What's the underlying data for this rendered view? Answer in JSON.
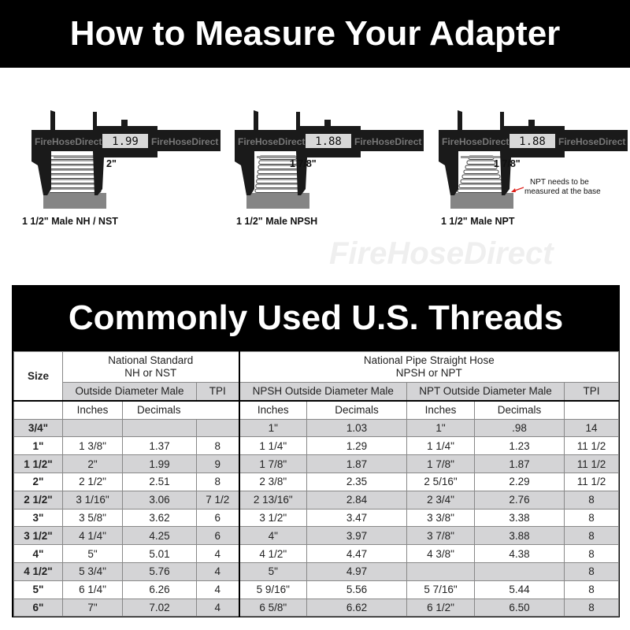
{
  "header": {
    "title": "How to Measure Your Adapter"
  },
  "calipers": [
    {
      "readout": "1.99",
      "measure": "2\"",
      "label": "1 1/2\" Male NH / NST",
      "watermark": "FireHoseDirect"
    },
    {
      "readout": "1.88",
      "measure": "1 7/8\"",
      "label": "1 1/2\" Male NPSH",
      "watermark": "FireHoseDirect"
    },
    {
      "readout": "1.88",
      "measure": "1 7/8\"",
      "label": "1 1/2\" Male NPT",
      "watermark": "FireHoseDirect",
      "note_line1": "NPT needs to be",
      "note_line2": "measured at the base"
    }
  ],
  "watermark": "FireHoseDirect",
  "colors": {
    "arrow": "#e0201a",
    "row_shade": "#d4d4d6"
  },
  "table": {
    "title": "Commonly Used U.S. Threads",
    "size_header": "Size",
    "nh_group_line1": "National Standard",
    "nh_group_line2": "NH or NST",
    "npsh_group_line1": "National Pipe Straight Hose",
    "npsh_group_line2": "NPSH or NPT",
    "nh_od": "Outside Diameter Male",
    "nh_tpi": "TPI",
    "npsh_od": "NPSH Outside Diameter Male",
    "npt_od": "NPT Outside Diameter Male",
    "npt_tpi": "TPI",
    "sub": [
      "Inches",
      "Decimals",
      "Inches",
      "Decimals",
      "Inches",
      "Decimals"
    ],
    "rows": [
      [
        "3/4\"",
        "",
        "",
        "",
        "1\"",
        "1.03",
        "1\"",
        ".98",
        "14"
      ],
      [
        "1\"",
        "1 3/8\"",
        "1.37",
        "8",
        "1 1/4\"",
        "1.29",
        "1 1/4\"",
        "1.23",
        "11 1/2"
      ],
      [
        "1 1/2\"",
        "2\"",
        "1.99",
        "9",
        "1 7/8\"",
        "1.87",
        "1 7/8\"",
        "1.87",
        "11 1/2"
      ],
      [
        "2\"",
        "2 1/2\"",
        "2.51",
        "8",
        "2 3/8\"",
        "2.35",
        "2 5/16\"",
        "2.29",
        "11 1/2"
      ],
      [
        "2 1/2\"",
        "3 1/16\"",
        "3.06",
        "7 1/2",
        "2 13/16\"",
        "2.84",
        "2 3/4\"",
        "2.76",
        "8"
      ],
      [
        "3\"",
        "3 5/8\"",
        "3.62",
        "6",
        "3 1/2\"",
        "3.47",
        "3 3/8\"",
        "3.38",
        "8"
      ],
      [
        "3 1/2\"",
        "4 1/4\"",
        "4.25",
        "6",
        "4\"",
        "3.97",
        "3 7/8\"",
        "3.88",
        "8"
      ],
      [
        "4\"",
        "5\"",
        "5.01",
        "4",
        "4 1/2\"",
        "4.47",
        "4 3/8\"",
        "4.38",
        "8"
      ],
      [
        "4 1/2\"",
        "5 3/4\"",
        "5.76",
        "4",
        "5\"",
        "4.97",
        "",
        "",
        "8"
      ],
      [
        "5\"",
        "6 1/4\"",
        "6.26",
        "4",
        "5 9/16\"",
        "5.56",
        "5 7/16\"",
        "5.44",
        "8"
      ],
      [
        "6\"",
        "7\"",
        "7.02",
        "4",
        "6 5/8\"",
        "6.62",
        "6 1/2\"",
        "6.50",
        "8"
      ]
    ]
  }
}
